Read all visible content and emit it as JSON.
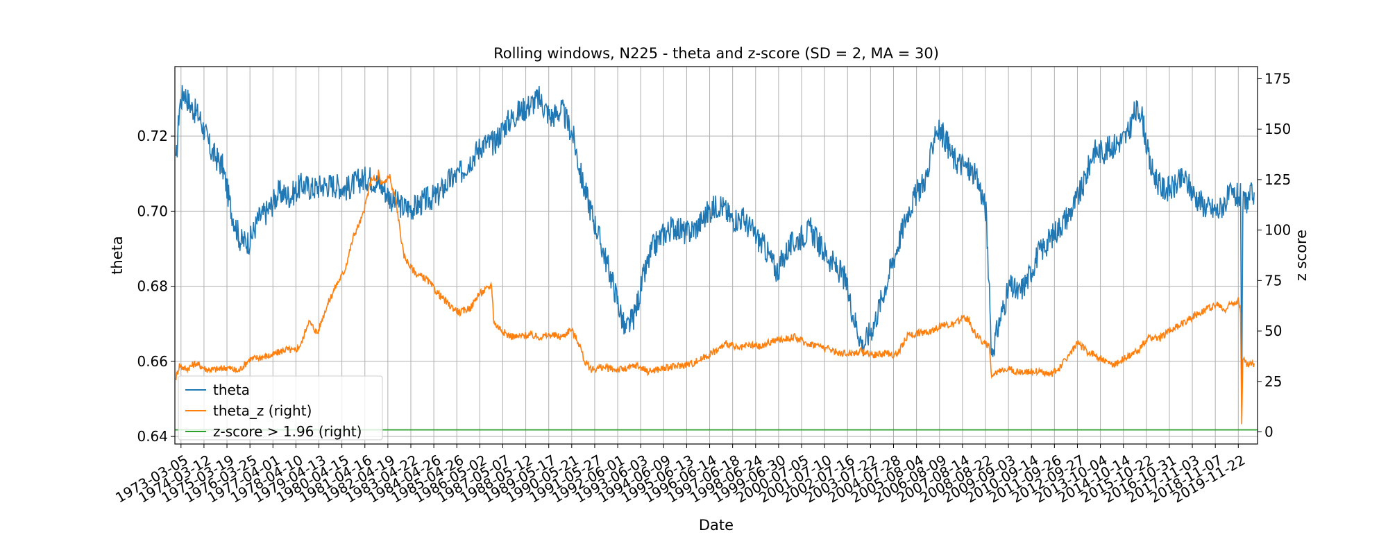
{
  "chart_data": {
    "type": "line",
    "title": "Rolling windows, N225 - theta and z-score (SD = 2, MA = 30)",
    "xlabel": "Date",
    "ylabel_left": "theta",
    "ylabel_right": "z score",
    "ylim_left": [
      0.638,
      0.7385
    ],
    "ylim_right": [
      -6,
      181
    ],
    "yticks_left": [
      0.64,
      0.66,
      0.68,
      0.7,
      0.72
    ],
    "ytick_labels_left": [
      "0.64",
      "0.66",
      "0.68",
      "0.70",
      "0.72"
    ],
    "yticks_right": [
      0,
      25,
      50,
      75,
      100,
      125,
      150,
      175
    ],
    "ytick_labels_right": [
      "0",
      "25",
      "50",
      "75",
      "100",
      "125",
      "150",
      "175"
    ],
    "xlim": [
      1972.9,
      2020.75
    ],
    "x_tick_labels": [
      "1973-03-05",
      "1974-03-12",
      "1975-03-19",
      "1976-03-25",
      "1977-04-01",
      "1978-04-10",
      "1979-04-13",
      "1980-04-15",
      "1981-04-16",
      "1982-04-19",
      "1983-04-22",
      "1984-04-26",
      "1985-04-26",
      "1986-05-02",
      "1987-05-07",
      "1988-05-12",
      "1989-05-17",
      "1990-05-21",
      "1991-05-27",
      "1992-06-01",
      "1993-06-03",
      "1994-06-09",
      "1995-06-13",
      "1996-06-14",
      "1997-06-18",
      "1998-06-24",
      "1999-06-30",
      "2000-07-05",
      "2001-07-10",
      "2002-07-16",
      "2003-07-22",
      "2004-07-28",
      "2005-08-04",
      "2006-08-09",
      "2007-08-14",
      "2008-08-22",
      "2009-09-03",
      "2010-09-14",
      "2011-09-26",
      "2012-09-27",
      "2013-10-04",
      "2014-10-14",
      "2015-10-22",
      "2016-10-31",
      "2017-11-03",
      "2018-11-07",
      "2019-11-22"
    ],
    "grid": true,
    "legend_position": "lower-left",
    "series": [
      {
        "name": "theta",
        "axis": "left",
        "color": "#1f77b4",
        "x": [
          1972.95,
          1973.1,
          1973.3,
          1973.6,
          1974.0,
          1974.5,
          1975.0,
          1975.4,
          1975.8,
          1976.2,
          1976.6,
          1977.0,
          1977.5,
          1978.0,
          1978.5,
          1979.0,
          1979.5,
          1980.0,
          1980.5,
          1981.0,
          1981.5,
          1982.0,
          1982.5,
          1983.0,
          1983.5,
          1984.0,
          1984.5,
          1985.0,
          1985.5,
          1986.0,
          1986.5,
          1987.0,
          1987.5,
          1988.0,
          1988.5,
          1989.0,
          1989.5,
          1990.0,
          1990.5,
          1990.9,
          1991.3,
          1991.8,
          1992.3,
          1992.8,
          1993.2,
          1993.6,
          1994.0,
          1994.5,
          1995.0,
          1995.5,
          1996.0,
          1996.5,
          1997.0,
          1997.5,
          1998.0,
          1998.5,
          1999.0,
          1999.5,
          2000.0,
          2000.5,
          2001.0,
          2001.5,
          2002.0,
          2002.5,
          2002.9,
          2003.3,
          2003.8,
          2004.3,
          2004.8,
          2005.3,
          2005.8,
          2006.2,
          2006.5,
          2006.9,
          2007.3,
          2007.8,
          2008.2,
          2008.5,
          2008.75,
          2009.0,
          2009.4,
          2009.8,
          2010.2,
          2010.6,
          2011.0,
          2011.5,
          2012.0,
          2012.5,
          2013.0,
          2013.5,
          2014.0,
          2014.5,
          2015.0,
          2015.3,
          2015.6,
          2016.0,
          2016.5,
          2017.0,
          2017.5,
          2018.0,
          2018.5,
          2019.0,
          2019.5,
          2019.9,
          2020.0,
          2020.05,
          2020.1,
          2020.3,
          2020.6
        ],
        "values": [
          0.712,
          0.728,
          0.732,
          0.728,
          0.725,
          0.716,
          0.712,
          0.7,
          0.692,
          0.692,
          0.698,
          0.7,
          0.705,
          0.704,
          0.707,
          0.706,
          0.707,
          0.707,
          0.706,
          0.708,
          0.709,
          0.707,
          0.703,
          0.701,
          0.701,
          0.703,
          0.704,
          0.708,
          0.71,
          0.714,
          0.718,
          0.718,
          0.723,
          0.726,
          0.728,
          0.73,
          0.725,
          0.727,
          0.72,
          0.708,
          0.7,
          0.69,
          0.68,
          0.668,
          0.672,
          0.682,
          0.69,
          0.694,
          0.696,
          0.694,
          0.696,
          0.7,
          0.702,
          0.698,
          0.698,
          0.694,
          0.69,
          0.684,
          0.69,
          0.693,
          0.695,
          0.69,
          0.686,
          0.682,
          0.672,
          0.664,
          0.67,
          0.68,
          0.69,
          0.7,
          0.706,
          0.71,
          0.722,
          0.72,
          0.714,
          0.712,
          0.71,
          0.706,
          0.7,
          0.662,
          0.672,
          0.68,
          0.678,
          0.682,
          0.688,
          0.692,
          0.696,
          0.7,
          0.706,
          0.716,
          0.716,
          0.718,
          0.72,
          0.726,
          0.727,
          0.712,
          0.706,
          0.706,
          0.709,
          0.704,
          0.701,
          0.7,
          0.704,
          0.704,
          0.704,
          0.645,
          0.702,
          0.703,
          0.705
        ]
      },
      {
        "name": "theta_z (right)",
        "axis": "right",
        "color": "#ff7f0e",
        "x": [
          1972.95,
          1973.1,
          1973.4,
          1973.8,
          1974.3,
          1974.8,
          1975.2,
          1975.7,
          1976.2,
          1976.7,
          1977.2,
          1977.8,
          1978.2,
          1978.5,
          1978.8,
          1979.2,
          1979.6,
          1980.0,
          1980.4,
          1980.8,
          1981.2,
          1981.6,
          1981.85,
          1981.9,
          1982.0,
          1982.4,
          1982.5,
          1982.6,
          1982.7,
          1983.0,
          1983.3,
          1983.6,
          1984.0,
          1984.5,
          1985.0,
          1985.5,
          1986.0,
          1986.3,
          1986.6,
          1986.9,
          1987.0,
          1987.3,
          1987.6,
          1988.0,
          1988.5,
          1989.0,
          1989.5,
          1990.0,
          1990.4,
          1990.8,
          1991.0,
          1991.3,
          1991.8,
          1992.3,
          1992.8,
          1993.3,
          1993.8,
          1994.3,
          1994.8,
          1995.3,
          1995.8,
          1996.3,
          1996.8,
          1997.3,
          1997.8,
          1998.3,
          1998.8,
          1999.3,
          1999.8,
          2000.3,
          2000.8,
          2001.3,
          2001.8,
          2002.3,
          2002.8,
          2003.3,
          2003.8,
          2004.3,
          2004.8,
          2005.3,
          2005.8,
          2006.3,
          2006.8,
          2007.3,
          2007.8,
          2008.0,
          2008.3,
          2008.6,
          2008.9,
          2009.0,
          2009.2,
          2009.6,
          2010.0,
          2010.4,
          2010.8,
          2011.2,
          2011.6,
          2012.0,
          2012.4,
          2012.8,
          2013.2,
          2013.6,
          2014.0,
          2014.4,
          2014.8,
          2015.2,
          2015.6,
          2016.0,
          2016.4,
          2016.8,
          2017.2,
          2017.6,
          2018.0,
          2018.5,
          2019.0,
          2019.3,
          2019.6,
          2019.9,
          2020.0,
          2020.05,
          2020.1,
          2020.3,
          2020.6
        ],
        "values": [
          27,
          33,
          31,
          34,
          31,
          31,
          32,
          30,
          36,
          37,
          38,
          41,
          40,
          44,
          55,
          49,
          62,
          72,
          80,
          97,
          107,
          126,
          124,
          129,
          122,
          127,
          120,
          118,
          112,
          88,
          82,
          78,
          76,
          69,
          63,
          59,
          62,
          68,
          70,
          73,
          54,
          51,
          48,
          47,
          48,
          47,
          48,
          47,
          51,
          43,
          35,
          31,
          32,
          31,
          31,
          33,
          30,
          31,
          32,
          33,
          34,
          37,
          40,
          44,
          41,
          43,
          42,
          45,
          46,
          47,
          44,
          43,
          41,
          39,
          39,
          40,
          38,
          39,
          38,
          48,
          49,
          50,
          53,
          53,
          57,
          55,
          48,
          45,
          42,
          26,
          29,
          32,
          30,
          30,
          30,
          30,
          28,
          32,
          38,
          44,
          40,
          38,
          35,
          33,
          36,
          38,
          42,
          47,
          46,
          50,
          52,
          55,
          58,
          61,
          63,
          60,
          64,
          65,
          60,
          5,
          36,
          33,
          34
        ]
      },
      {
        "name": "z-score > 1.96 (right)",
        "axis": "right",
        "color": "#2ca02c",
        "x": [
          1972.9,
          2020.75
        ],
        "values": [
          1.0,
          1.0
        ]
      }
    ]
  }
}
